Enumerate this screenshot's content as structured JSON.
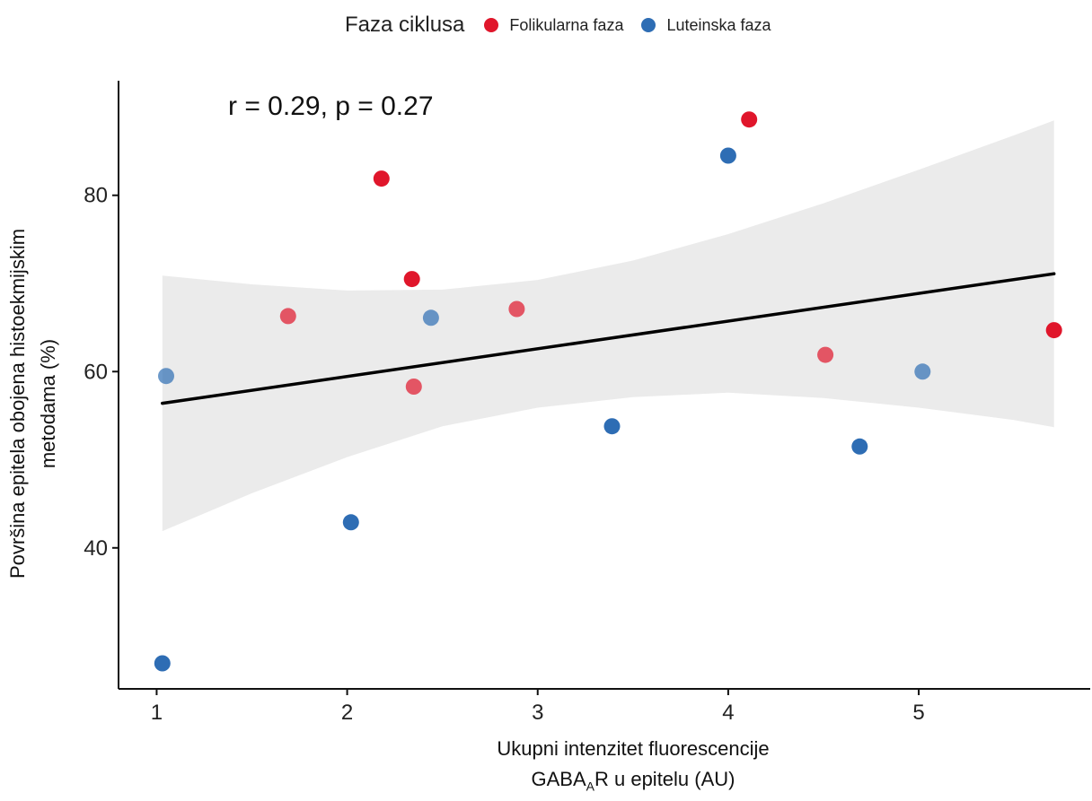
{
  "legend": {
    "title": "Faza ciklusa",
    "items": [
      {
        "label": "Folikularna faza",
        "color": "#e0162b"
      },
      {
        "label": "Luteinska faza",
        "color": "#2e6db4"
      }
    ]
  },
  "annotation": "r = 0.29, p = 0.27",
  "axes": {
    "xlabel_line1": "Ukupni intenzitet fluorescencije",
    "xlabel_line2_prefix": "GABA",
    "xlabel_line2_sub": "A",
    "xlabel_line2_suffix": "R u epitelu (AU)",
    "ylabel_line1": "Površina epitela obojena histoekmijskim",
    "ylabel_line2": "metodama (%)"
  },
  "chart_data": {
    "type": "scatter",
    "xlabel": "Ukupni intenzitet fluorescencije GABAAR u epitelu (AU)",
    "ylabel": "Površina epitela obojena histoekmijskim metodama (%)",
    "xlim": [
      0.8,
      5.9
    ],
    "ylim": [
      24,
      93
    ],
    "xticks": [
      1,
      2,
      3,
      4,
      5
    ],
    "yticks": [
      40,
      60,
      80
    ],
    "grid": false,
    "legend_position": "top",
    "series": [
      {
        "name": "Folikularna faza",
        "color": "#e0162b",
        "points": [
          {
            "x": 1.69,
            "y": 66.3,
            "alpha": 0.7
          },
          {
            "x": 2.18,
            "y": 81.9,
            "alpha": 1.0
          },
          {
            "x": 2.34,
            "y": 70.5,
            "alpha": 1.0
          },
          {
            "x": 2.35,
            "y": 58.3,
            "alpha": 0.7
          },
          {
            "x": 2.89,
            "y": 67.1,
            "alpha": 0.7
          },
          {
            "x": 4.11,
            "y": 88.6,
            "alpha": 1.0
          },
          {
            "x": 4.51,
            "y": 61.9,
            "alpha": 0.7
          },
          {
            "x": 5.71,
            "y": 64.7,
            "alpha": 1.0
          }
        ]
      },
      {
        "name": "Luteinska faza",
        "color": "#2e6db4",
        "points": [
          {
            "x": 1.03,
            "y": 26.9,
            "alpha": 1.0
          },
          {
            "x": 1.05,
            "y": 59.5,
            "alpha": 0.7
          },
          {
            "x": 2.02,
            "y": 42.9,
            "alpha": 1.0
          },
          {
            "x": 2.44,
            "y": 66.1,
            "alpha": 0.7
          },
          {
            "x": 3.39,
            "y": 53.8,
            "alpha": 1.0
          },
          {
            "x": 4.0,
            "y": 84.5,
            "alpha": 1.0
          },
          {
            "x": 4.69,
            "y": 51.5,
            "alpha": 1.0
          },
          {
            "x": 5.02,
            "y": 60.0,
            "alpha": 0.7
          }
        ]
      }
    ],
    "regression": {
      "x": [
        1.03,
        5.71
      ],
      "y": [
        56.4,
        71.1
      ],
      "confidence_band": {
        "x": [
          1.03,
          1.5,
          2.0,
          2.5,
          3.0,
          3.5,
          4.0,
          4.5,
          5.0,
          5.5,
          5.71
        ],
        "upper": [
          70.9,
          69.9,
          69.2,
          69.3,
          70.4,
          72.6,
          75.6,
          79.1,
          82.9,
          86.8,
          88.5
        ],
        "lower": [
          41.9,
          46.2,
          50.3,
          53.8,
          55.9,
          57.1,
          57.6,
          57.0,
          55.9,
          54.5,
          53.7
        ]
      }
    }
  }
}
